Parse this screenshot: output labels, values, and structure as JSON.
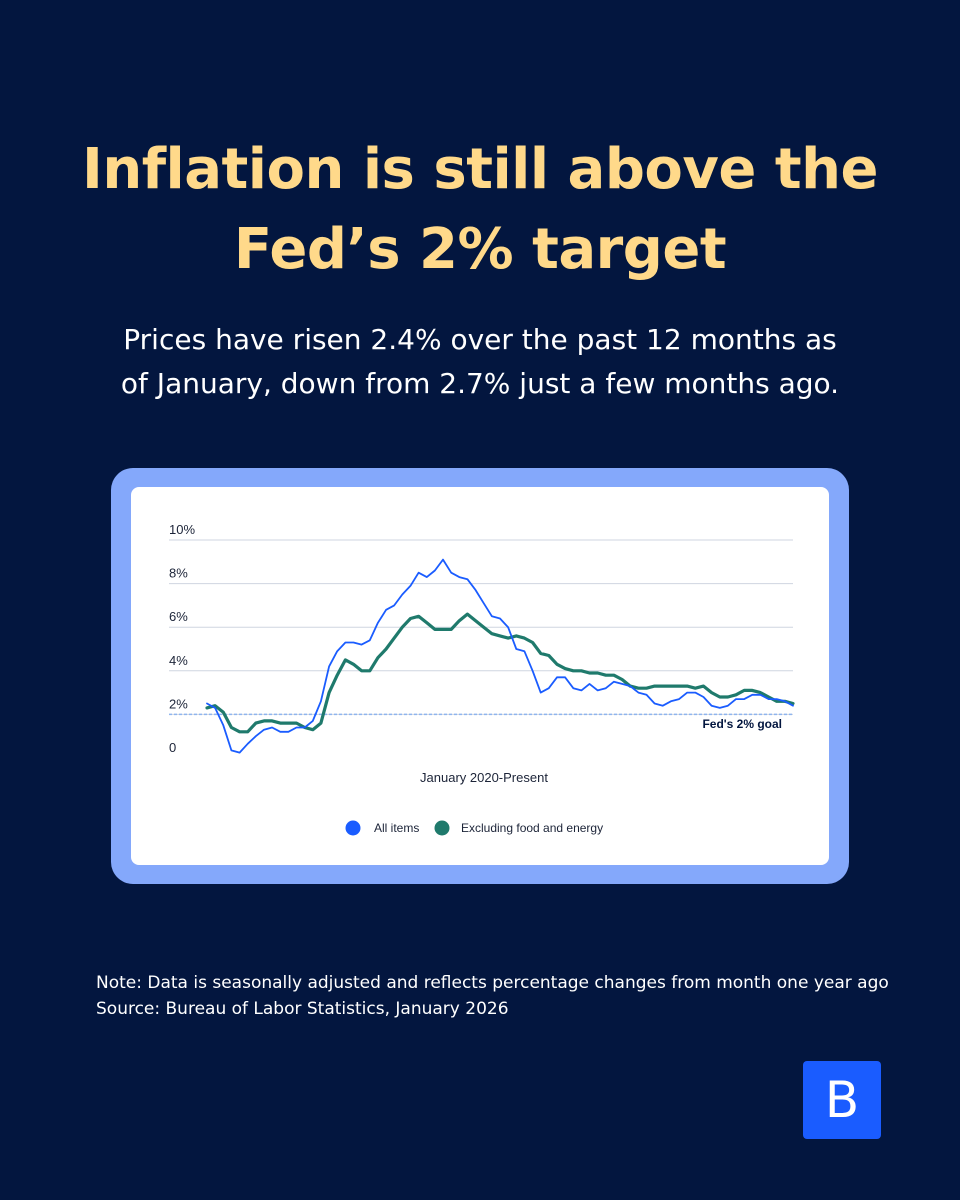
{
  "headline": {
    "line1": "Inflation is still above the",
    "line2": "Fed’s 2% target"
  },
  "subhead": {
    "line1": "Prices have risen 2.4% over the past 12 months as",
    "line2": "of January, down from 2.7% just a few months ago."
  },
  "footnote": {
    "note": "Note: Data is seasonally adjusted and reflects percentage changes from month one year ago",
    "source": "Source: Bureau of Labor Statistics, January 2026"
  },
  "brand": {
    "logo_letter": "B"
  },
  "colors": {
    "background": "#03163f",
    "headline": "#ffd98a",
    "frame": "#84a8fb",
    "all_items": "#1a5cff",
    "core": "#1f7a6c",
    "goal_line": "#8fb5ef",
    "gridline": "#cfd5e0"
  },
  "chart_data": {
    "type": "line",
    "xlabel": "January 2020-Present",
    "ylabel": "",
    "ylim": [
      0,
      10
    ],
    "y_ticks": [
      "0",
      "2%",
      "4%",
      "6%",
      "8%",
      "10%"
    ],
    "grid": true,
    "legend": "bottom",
    "reference_line": {
      "value": 2,
      "label": "Fed's 2% goal"
    },
    "x_start": "January 2020",
    "x_end": "January 2026",
    "series": [
      {
        "name": "All items",
        "color": "#1a5cff",
        "marker": "thin",
        "values": [
          2.5,
          2.3,
          1.5,
          0.35,
          0.25,
          0.65,
          1.0,
          1.3,
          1.4,
          1.2,
          1.2,
          1.4,
          1.4,
          1.7,
          2.6,
          4.2,
          4.9,
          5.3,
          5.3,
          5.2,
          5.4,
          6.2,
          6.8,
          7.0,
          7.5,
          7.9,
          8.5,
          8.3,
          8.6,
          9.1,
          8.5,
          8.3,
          8.2,
          7.7,
          7.1,
          6.5,
          6.4,
          6.0,
          5.0,
          4.9,
          4.0,
          3.0,
          3.2,
          3.7,
          3.7,
          3.2,
          3.1,
          3.4,
          3.1,
          3.2,
          3.5,
          3.4,
          3.3,
          3.0,
          2.9,
          2.5,
          2.4,
          2.6,
          2.7,
          3.0,
          3.0,
          2.8,
          2.4,
          2.3,
          2.4,
          2.7,
          2.7,
          2.9,
          2.9,
          2.7,
          2.7,
          2.6,
          2.4
        ]
      },
      {
        "name": "Excluding food and energy",
        "color": "#1f7a6c",
        "marker": "thick",
        "values": [
          2.3,
          2.4,
          2.1,
          1.4,
          1.2,
          1.2,
          1.6,
          1.7,
          1.7,
          1.6,
          1.6,
          1.6,
          1.4,
          1.3,
          1.6,
          3.0,
          3.8,
          4.5,
          4.3,
          4.0,
          4.0,
          4.6,
          5.0,
          5.5,
          6.0,
          6.4,
          6.5,
          6.2,
          5.9,
          5.9,
          5.9,
          6.3,
          6.6,
          6.3,
          6.0,
          5.7,
          5.6,
          5.5,
          5.6,
          5.5,
          5.3,
          4.8,
          4.7,
          4.3,
          4.1,
          4.0,
          4.0,
          3.9,
          3.9,
          3.8,
          3.8,
          3.6,
          3.3,
          3.2,
          3.2,
          3.3,
          3.3,
          3.3,
          3.3,
          3.3,
          3.2,
          3.3,
          3.0,
          2.8,
          2.8,
          2.9,
          3.1,
          3.1,
          3.0,
          2.8,
          2.6,
          2.6,
          2.5
        ]
      }
    ]
  }
}
